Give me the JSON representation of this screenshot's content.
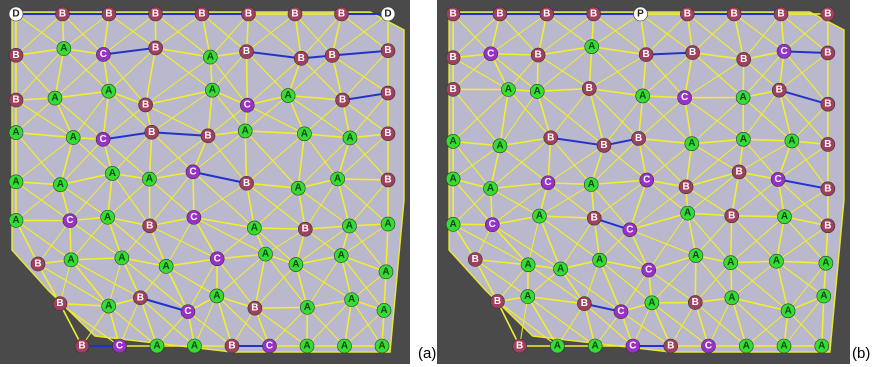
{
  "panels": [
    {
      "caption": "(a)",
      "nodes": [
        [
          "D",
          "B",
          "B",
          "B",
          "B",
          "B",
          "B",
          "B",
          "D"
        ],
        [
          "B",
          "A",
          "C",
          "B",
          "A",
          "B",
          "B",
          "B",
          "B"
        ],
        [
          "B",
          "A",
          "A",
          "B",
          "A",
          "C",
          "A",
          "B",
          "B"
        ],
        [
          "A",
          "A",
          "C",
          "B",
          "B",
          "A",
          "A",
          "A",
          "B"
        ],
        [
          "A",
          "A",
          "A",
          "A",
          "C",
          "B",
          "A",
          "A",
          "B"
        ],
        [
          "A",
          "C",
          "A",
          "B",
          "C",
          "A",
          "B",
          "A",
          "A"
        ],
        [
          "B",
          "A",
          "A",
          "A",
          "C",
          "A",
          "A",
          "A",
          "A"
        ],
        [
          "B",
          "A",
          "B",
          "C",
          "A",
          "B",
          "A",
          "A",
          "A"
        ],
        [
          "B",
          "C",
          "A",
          "A",
          "B",
          "C",
          "A",
          "A",
          "A"
        ]
      ]
    },
    {
      "caption": "(b)",
      "nodes": [
        [
          "B",
          "B",
          "B",
          "B",
          "P",
          "B",
          "B",
          "B",
          "B"
        ],
        [
          "B",
          "C",
          "B",
          "A",
          "B",
          "B",
          "B",
          "C",
          "B"
        ],
        [
          "B",
          "A",
          "A",
          "B",
          "A",
          "C",
          "A",
          "B",
          "B"
        ],
        [
          "A",
          "A",
          "B",
          "B",
          "B",
          "A",
          "A",
          "A",
          "B"
        ],
        [
          "A",
          "A",
          "C",
          "A",
          "C",
          "B",
          "B",
          "C",
          "B"
        ],
        [
          "A",
          "C",
          "A",
          "B",
          "C",
          "A",
          "B",
          "A",
          "B"
        ],
        [
          "B",
          "A",
          "A",
          "A",
          "C",
          "A",
          "A",
          "A",
          "A"
        ],
        [
          "B",
          "A",
          "B",
          "C",
          "A",
          "B",
          "A",
          "A",
          "A"
        ],
        [
          "B",
          "A",
          "A",
          "C",
          "B",
          "C",
          "A",
          "A",
          "A"
        ]
      ]
    }
  ]
}
